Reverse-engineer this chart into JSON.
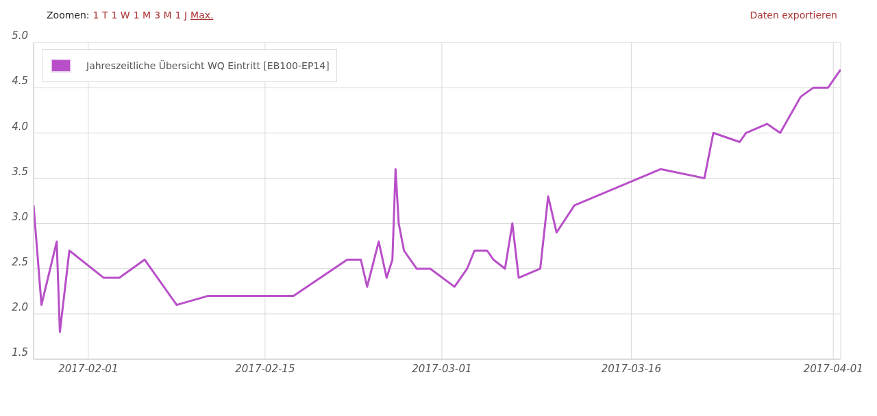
{
  "chart_data": {
    "type": "line",
    "annotations": [
      "Zoomen:",
      "1 T",
      "1 W",
      "1 M",
      "3 M",
      "1 J",
      "Max.",
      "Daten exportieren"
    ],
    "x": [
      "2017-01-27T16:00",
      "2017-01-28T07:00",
      "2017-01-29T12:00",
      "2017-01-29T18:00",
      "2017-01-30T12:00",
      "2017-02-02T05:00",
      "2017-02-03T11:00",
      "2017-02-05T11:00",
      "2017-02-08",
      "2017-02-10T12:00",
      "2017-02-17T06:00",
      "2017-02-21T12:00",
      "2017-02-22T14:00",
      "2017-02-23T02:00",
      "2017-02-24",
      "2017-02-24T15:00",
      "2017-02-25T02:00",
      "2017-02-25T08:00",
      "2017-02-25T14:00",
      "2017-02-26",
      "2017-02-27",
      "2017-02-28T02:00",
      "2017-03-02",
      "2017-03-03",
      "2017-03-03T14:00",
      "2017-03-04T14:00",
      "2017-03-05T02:00",
      "2017-03-06",
      "2017-03-06T14:00",
      "2017-03-07T02:00",
      "2017-03-08T19:00",
      "2017-03-09T10:00",
      "2017-03-10T02:00",
      "2017-03-11T12:00",
      "2017-03-18T08:00",
      "2017-03-21T19:00",
      "2017-03-22T12:00",
      "2017-03-24T14:00",
      "2017-03-25T02:00",
      "2017-03-26T18:00",
      "2017-03-27T19:00",
      "2017-03-29T10:00",
      "2017-03-30T10:00",
      "2017-03-31T14:00",
      "2017-04-01T14:00"
    ],
    "series": [
      {
        "name": "Jahreszeitliche Übersicht WQ Eintritt [EB100-EP14]",
        "color": "#b84fc8",
        "values": [
          3.2,
          2.1,
          2.8,
          1.8,
          2.7,
          2.4,
          2.4,
          2.6,
          2.1,
          2.2,
          2.2,
          2.6,
          2.6,
          2.3,
          2.8,
          2.4,
          2.6,
          3.6,
          3.0,
          2.7,
          2.5,
          2.5,
          2.3,
          2.5,
          2.7,
          2.7,
          2.6,
          2.5,
          3.0,
          2.4,
          2.5,
          3.3,
          2.9,
          3.2,
          3.6,
          3.5,
          4.0,
          3.9,
          4.0,
          4.1,
          4.0,
          4.4,
          4.5,
          4.5,
          4.7
        ]
      }
    ],
    "xlim": [
      "2017-01-27T16:00",
      "2017-04-01T14:00"
    ],
    "xticks": [
      "2017-02-01",
      "2017-02-15",
      "2017-03-01",
      "2017-03-16",
      "2017-04-01"
    ],
    "ylim": [
      1.5,
      5.0
    ],
    "yticks": [
      {
        "value": 1.5,
        "label": "1.5"
      },
      {
        "value": 2,
        "label": "2.0"
      },
      {
        "value": 2.5,
        "label": "2.5"
      },
      {
        "value": 3,
        "label": "3.0"
      },
      {
        "value": 3.5,
        "label": "3.5"
      },
      {
        "value": 4,
        "label": "4.0"
      },
      {
        "value": 4.5,
        "label": "4.5"
      },
      {
        "value": 5,
        "label": "5.0"
      }
    ],
    "grid": true,
    "legend": "top left",
    "marker": "none",
    "line_style": "solid"
  }
}
